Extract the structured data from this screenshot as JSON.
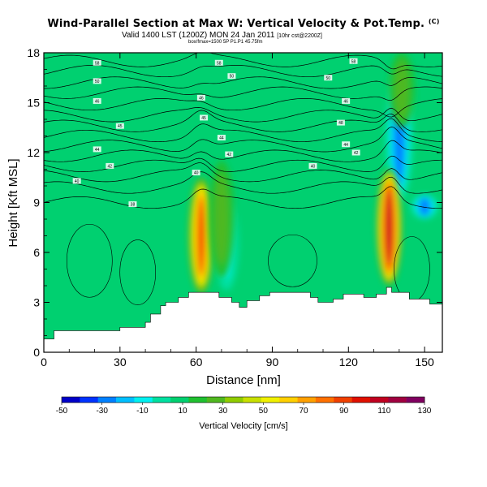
{
  "title": "Wind-Parallel Section at Max W: Vertical Velocity & Pot.Temp.",
  "copyright": "(C)",
  "subtitle_main": "Valid 1400 LST (1200Z) MON 24 Jan 2011",
  "subtitle_note": "[10hr cst@2200Z]",
  "subsubtitle": "box/fmax=1500 5P P1.P1 45.75fm",
  "chart_data": {
    "type": "heatmap",
    "title": "Wind-Parallel Section at Max W: Vertical Velocity & Pot.Temp.",
    "xlabel": "Distance [nm]",
    "ylabel": "Height [Kft MSL]",
    "xlim": [
      0,
      157
    ],
    "ylim": [
      0,
      18
    ],
    "xticks": [
      0,
      30,
      60,
      90,
      120,
      150
    ],
    "yticks": [
      0,
      3,
      6,
      9,
      12,
      15,
      18
    ],
    "colorbar": {
      "label": "Vertical Velocity [cm/s]",
      "levels": [
        -50,
        -30,
        -10,
        10,
        30,
        50,
        70,
        90,
        110,
        130
      ],
      "tick_labels": [
        "-50",
        "-30",
        "-10",
        "10",
        "30",
        "50",
        "70",
        "90",
        "110",
        "130"
      ],
      "colors": [
        "#0000c8",
        "#0032ff",
        "#0080ff",
        "#00bfff",
        "#00f0f0",
        "#00e0a0",
        "#00d070",
        "#20c030",
        "#50b820",
        "#90cc00",
        "#c8e000",
        "#f0f000",
        "#ffd000",
        "#ffa000",
        "#ff7000",
        "#f04000",
        "#e01000",
        "#c00020",
        "#a00040",
        "#800060"
      ]
    },
    "background_w_cms": 10,
    "updraft_cores": [
      {
        "x": 62,
        "y_range": [
          3.5,
          10.5
        ],
        "max_w_cms": 90
      },
      {
        "x": 70,
        "y_range": [
          4.5,
          11.5
        ],
        "max_w_cms": 30
      },
      {
        "x": 136,
        "y_range": [
          4.0,
          11.0
        ],
        "max_w_cms": 110
      },
      {
        "x": 141,
        "y_range": [
          13.5,
          18
        ],
        "max_w_cms": 30
      }
    ],
    "downdraft_regions": [
      {
        "x": 72,
        "y_range": [
          3.5,
          9.5
        ],
        "min_w_cms": -10
      },
      {
        "x": 140,
        "y_range": [
          9,
          17
        ],
        "min_w_cms": -30
      },
      {
        "x": 150,
        "y_range": [
          8,
          9.5
        ],
        "min_w_cms": -30
      }
    ],
    "terrain": [
      [
        0,
        0.8
      ],
      [
        4,
        0.8
      ],
      [
        4,
        1.3
      ],
      [
        30,
        1.3
      ],
      [
        30,
        1.5
      ],
      [
        40,
        1.5
      ],
      [
        40,
        1.8
      ],
      [
        42,
        1.8
      ],
      [
        42,
        2.3
      ],
      [
        46,
        2.3
      ],
      [
        46,
        2.8
      ],
      [
        48,
        2.8
      ],
      [
        48,
        3.0
      ],
      [
        53,
        3.0
      ],
      [
        53,
        3.3
      ],
      [
        57,
        3.3
      ],
      [
        57,
        3.6
      ],
      [
        69,
        3.6
      ],
      [
        69,
        3.3
      ],
      [
        74,
        3.3
      ],
      [
        74,
        3.0
      ],
      [
        77,
        3.0
      ],
      [
        77,
        2.7
      ],
      [
        80,
        2.7
      ],
      [
        80,
        3.1
      ],
      [
        85,
        3.1
      ],
      [
        85,
        3.4
      ],
      [
        89,
        3.4
      ],
      [
        89,
        3.6
      ],
      [
        105,
        3.6
      ],
      [
        105,
        3.3
      ],
      [
        108,
        3.3
      ],
      [
        108,
        3.0
      ],
      [
        114,
        3.0
      ],
      [
        114,
        3.2
      ],
      [
        118,
        3.2
      ],
      [
        118,
        3.5
      ],
      [
        126,
        3.5
      ],
      [
        126,
        3.3
      ],
      [
        131,
        3.3
      ],
      [
        131,
        3.5
      ],
      [
        135,
        3.5
      ],
      [
        135,
        3.9
      ],
      [
        137,
        3.9
      ],
      [
        137,
        3.6
      ],
      [
        144,
        3.6
      ],
      [
        144,
        3.2
      ],
      [
        152,
        3.2
      ],
      [
        152,
        2.9
      ],
      [
        157,
        2.9
      ]
    ],
    "theta_labels": [
      {
        "x": 21,
        "y": 17.4,
        "text": "58"
      },
      {
        "x": 69,
        "y": 17.4,
        "text": "58"
      },
      {
        "x": 122,
        "y": 17.5,
        "text": "58"
      },
      {
        "x": 21,
        "y": 16.3,
        "text": "50"
      },
      {
        "x": 74,
        "y": 16.6,
        "text": "50"
      },
      {
        "x": 112,
        "y": 16.5,
        "text": "50"
      },
      {
        "x": 21,
        "y": 15.1,
        "text": "46"
      },
      {
        "x": 62,
        "y": 15.3,
        "text": "46"
      },
      {
        "x": 119,
        "y": 15.1,
        "text": "46"
      },
      {
        "x": 30,
        "y": 13.6,
        "text": "45"
      },
      {
        "x": 63,
        "y": 14.1,
        "text": "45"
      },
      {
        "x": 117,
        "y": 13.8,
        "text": "48"
      },
      {
        "x": 21,
        "y": 12.2,
        "text": "44"
      },
      {
        "x": 70,
        "y": 12.9,
        "text": "44"
      },
      {
        "x": 119,
        "y": 12.5,
        "text": "44"
      },
      {
        "x": 26,
        "y": 11.2,
        "text": "42"
      },
      {
        "x": 73,
        "y": 11.9,
        "text": "42"
      },
      {
        "x": 123,
        "y": 12.0,
        "text": "42"
      },
      {
        "x": 13,
        "y": 10.3,
        "text": "40"
      },
      {
        "x": 60,
        "y": 10.8,
        "text": "40"
      },
      {
        "x": 106,
        "y": 11.2,
        "text": "40"
      },
      {
        "x": 35,
        "y": 8.9,
        "text": "38"
      }
    ]
  }
}
